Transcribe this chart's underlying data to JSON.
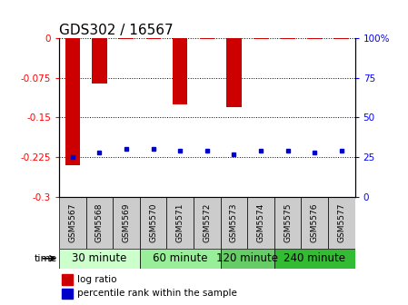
{
  "title": "GDS302 / 16567",
  "samples": [
    "GSM5567",
    "GSM5568",
    "GSM5569",
    "GSM5570",
    "GSM5571",
    "GSM5572",
    "GSM5573",
    "GSM5574",
    "GSM5575",
    "GSM5576",
    "GSM5577"
  ],
  "log_ratio": [
    -0.24,
    -0.085,
    -0.001,
    -0.001,
    -0.125,
    -0.001,
    -0.13,
    -0.001,
    -0.001,
    -0.001,
    -0.001
  ],
  "percentile_rank": [
    25,
    28,
    30,
    30,
    29,
    29,
    27,
    29,
    29,
    28,
    29
  ],
  "ylim": [
    -0.3,
    0.0
  ],
  "yticks": [
    0.0,
    -0.075,
    -0.15,
    -0.225,
    -0.3
  ],
  "ytick_labels": [
    "0",
    "-0.075",
    "-0.15",
    "-0.225",
    "-0.3"
  ],
  "right_yticks_vals": [
    0,
    25,
    50,
    75,
    100
  ],
  "right_ytick_labels": [
    "0",
    "25",
    "50",
    "75",
    "100%"
  ],
  "bar_color": "#cc0000",
  "dot_color": "#0000cc",
  "bar_width": 0.55,
  "groups": [
    {
      "label": "30 minute",
      "n": 3,
      "color": "#ccffcc"
    },
    {
      "label": "60 minute",
      "n": 3,
      "color": "#99ee99"
    },
    {
      "label": "120 minute",
      "n": 2,
      "color": "#66cc66"
    },
    {
      "label": "240 minute",
      "n": 3,
      "color": "#33bb33"
    }
  ],
  "legend_log_ratio_color": "#cc0000",
  "legend_percentile_color": "#0000cc",
  "title_fontsize": 11,
  "tick_fontsize": 7.5,
  "sample_fontsize": 6.5,
  "group_label_fontsize": 8.5
}
